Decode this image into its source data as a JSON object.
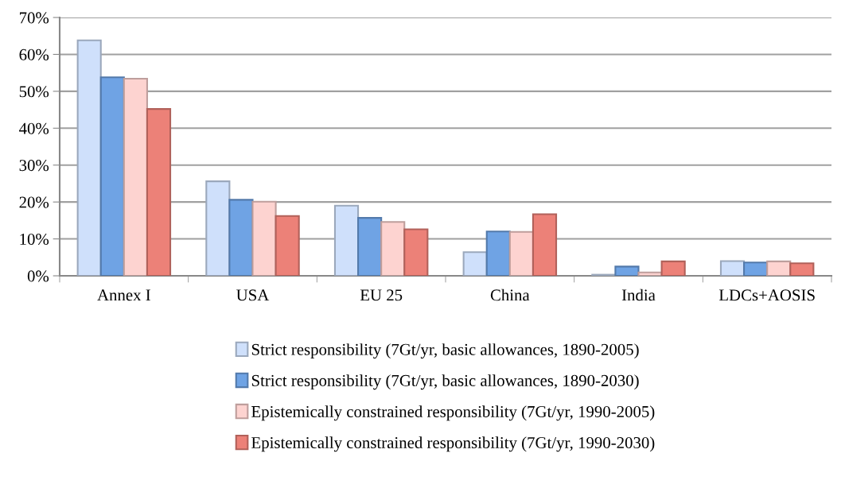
{
  "chart_data": {
    "type": "bar",
    "categories": [
      "Annex I",
      "USA",
      "EU 25",
      "China",
      "India",
      "LDCs+AOSIS"
    ],
    "series": [
      {
        "name": "Strict responsibility (7Gt/yr, basic allowances, 1890-2005)",
        "color": "#cfe0fb",
        "values": [
          63.8,
          25.6,
          19.0,
          6.4,
          0.3,
          4.0
        ]
      },
      {
        "name": "Strict responsibility (7Gt/yr, basic allowances, 1890-2030)",
        "color": "#6fa3e4",
        "values": [
          53.8,
          20.6,
          15.7,
          12.0,
          2.5,
          3.6
        ]
      },
      {
        "name": "Epistemically constrained responsibility (7Gt/yr, 1990-2005)",
        "color": "#fdd3d0",
        "values": [
          53.4,
          20.1,
          14.6,
          11.9,
          0.9,
          3.9
        ]
      },
      {
        "name": "Epistemically constrained responsibility (7Gt/yr, 1990-2030)",
        "color": "#ec8178",
        "values": [
          45.2,
          16.2,
          12.6,
          16.7,
          3.9,
          3.4
        ]
      }
    ],
    "ylim": [
      0,
      70
    ],
    "yticks": [
      {
        "value": 0,
        "label": "0%"
      },
      {
        "value": 10,
        "label": "10%"
      },
      {
        "value": 20,
        "label": "20%"
      },
      {
        "value": 30,
        "label": "30%"
      },
      {
        "value": 40,
        "label": "40%"
      },
      {
        "value": 50,
        "label": "50%"
      },
      {
        "value": 60,
        "label": "60%"
      },
      {
        "value": 70,
        "label": "70%"
      }
    ],
    "grid": "y",
    "legend": "bottom"
  }
}
